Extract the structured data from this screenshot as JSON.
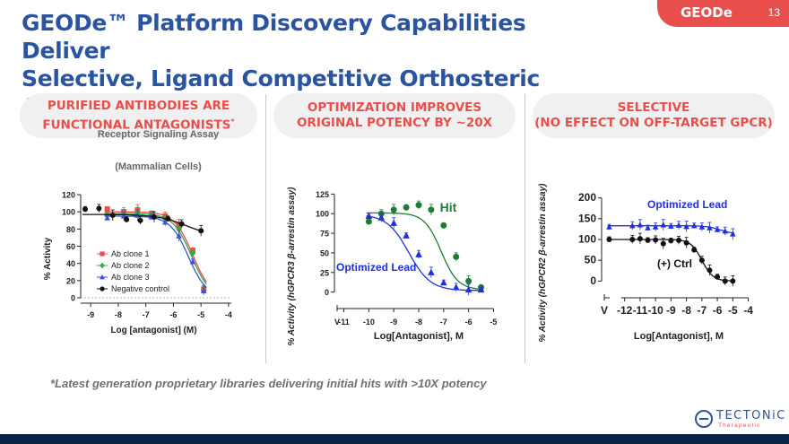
{
  "header": {
    "title_line1": "GEODe™ Platform Discovery Capabilities Deliver",
    "title_line2": "Selective, Ligand Competitive Orthosteric Antagonists",
    "badge_label": "GEODe",
    "slide_number": "13"
  },
  "panels": [
    {
      "heading_line1": "PURIFIED ANTIBODIES ARE",
      "heading_line2": "FUNCTIONAL ANTAGONISTS",
      "heading_mark": "*"
    },
    {
      "heading_line1": "OPTIMIZATION IMPROVES",
      "heading_line2": "ORIGINAL POTENCY BY ~20X"
    },
    {
      "heading_line1": "SELECTIVE",
      "heading_line2": "(NO EFFECT ON OFF-TARGET GPCR)"
    }
  ],
  "footnote": "*Latest generation proprietary libraries delivering initial hits with >10X potency",
  "logo": {
    "name": "TECTONiC",
    "sub": "Therapeutic"
  },
  "colors": {
    "accent": "#e84e4b",
    "title": "#2a54a0",
    "footer": "#0d2447"
  },
  "chart_data": [
    {
      "type": "scatter",
      "title": "Receptor Signaling Assay",
      "subtitle": "(Mammalian Cells)",
      "xlabel": "Log [antagonist] (M)",
      "ylabel": "% Activity",
      "xlim": [
        -9.2,
        -3.9
      ],
      "ylim": [
        0,
        120
      ],
      "xticks": [
        -9,
        -8,
        -7,
        -6,
        -5,
        -4
      ],
      "yticks": [
        0,
        20,
        40,
        60,
        80,
        100,
        120
      ],
      "legend_position": "left-center",
      "series": [
        {
          "name": "Ab clone 1",
          "color": "#e84e4b",
          "marker": "square",
          "x": [
            -8.4,
            -7.8,
            -7.3,
            -6.8,
            -6.3,
            -5.8,
            -5.3,
            -4.9
          ],
          "y": [
            103,
            100,
            102,
            98,
            95,
            85,
            55,
            10
          ],
          "fit_top": 100,
          "fit_bottom": 0,
          "logIC50": -5.3,
          "hill": 1.3
        },
        {
          "name": "Ab clone 2",
          "color": "#3aa844",
          "marker": "diamond",
          "x": [
            -8.4,
            -7.8,
            -7.3,
            -6.8,
            -6.3,
            -5.8,
            -5.3,
            -4.9
          ],
          "y": [
            96,
            98,
            99,
            97,
            92,
            80,
            52,
            9
          ],
          "fit_top": 98,
          "fit_bottom": 0,
          "logIC50": -5.35,
          "hill": 1.3
        },
        {
          "name": "Ab clone 3",
          "color": "#3f51d8",
          "marker": "triangle",
          "x": [
            -8.4,
            -7.8,
            -7.3,
            -6.8,
            -6.3,
            -5.8,
            -5.3,
            -4.9
          ],
          "y": [
            93,
            95,
            96,
            94,
            88,
            72,
            42,
            8
          ],
          "fit_top": 95,
          "fit_bottom": 0,
          "logIC50": -5.45,
          "hill": 1.3
        },
        {
          "name": "Negative control",
          "color": "#111111",
          "marker": "circle",
          "x": [
            -9.2,
            -8.7,
            -8.2,
            -7.7,
            -7.2,
            -6.7,
            -6.2,
            -5.7,
            -5.0
          ],
          "y": [
            103,
            104,
            96,
            91,
            90,
            94,
            92,
            86,
            78
          ],
          "fit_top": 97,
          "fit_bottom": 70,
          "logIC50": -5.5,
          "hill": 0.8
        }
      ]
    },
    {
      "type": "scatter",
      "xlabel": "Log[Antagonist], M",
      "ylabel": "% Activity (hGPCR3 β-arrestin assay)",
      "xlim": [
        -11.2,
        -4.8
      ],
      "ylim": [
        -5,
        130
      ],
      "xtick_labels": [
        "V",
        "-11",
        "-10",
        "-9",
        "-8",
        "-7",
        "-6",
        "-5"
      ],
      "xticks": [
        -11,
        -10,
        -9,
        -8,
        -7,
        -6,
        -5
      ],
      "yticks": [
        0,
        25,
        50,
        75,
        100,
        125
      ],
      "series": [
        {
          "name": "Hit",
          "color": "#1e7d32",
          "marker": "circle",
          "x": [
            -10,
            -9.5,
            -9,
            -8.5,
            -8,
            -7.5,
            -7,
            -6.5,
            -6,
            -5.5
          ],
          "y": [
            90,
            100,
            105,
            108,
            111,
            105,
            85,
            45,
            14,
            6
          ],
          "fit_top": 101,
          "fit_bottom": 3,
          "logIC50": -7.1,
          "hill": 1.3
        },
        {
          "name": "Optimized Lead",
          "color": "#2030e0",
          "marker": "triangle",
          "x": [
            -10,
            -9.5,
            -9,
            -8.5,
            -8,
            -7.5,
            -7,
            -6.5,
            -6,
            -5.5
          ],
          "y": [
            97,
            95,
            88,
            72,
            48,
            25,
            12,
            6,
            3,
            3
          ],
          "fit_top": 99,
          "fit_bottom": 2,
          "logIC50": -8.4,
          "hill": 1.0
        }
      ]
    },
    {
      "type": "scatter",
      "xlabel": "Log[Antagonist], M",
      "ylabel": "% Activity (hGPCR2 β-arrestin assay)",
      "xlim": [
        -13.2,
        -3.8
      ],
      "ylim": [
        -10,
        210
      ],
      "xtick_labels": [
        "V",
        "-12",
        "-11",
        "-10",
        "-9",
        "-8",
        "-7",
        "-6",
        "-5",
        "-4"
      ],
      "xticks": [
        -12,
        -11,
        -10,
        -9,
        -8,
        -7,
        -6,
        -5,
        -4
      ],
      "yticks": [
        0,
        50,
        100,
        150,
        200
      ],
      "series": [
        {
          "name": "Optimized Lead",
          "color": "#2030e0",
          "marker": "triangle",
          "x": [
            -13.0,
            -11.5,
            -11.0,
            -10.5,
            -10.0,
            -9.5,
            -9.0,
            -8.5,
            -8.0,
            -7.5,
            -7.0,
            -6.5,
            -6.0,
            -5.5,
            -5.0
          ],
          "y": [
            130,
            133,
            135,
            128,
            130,
            135,
            132,
            134,
            131,
            133,
            130,
            128,
            124,
            120,
            113
          ],
          "fit_top": 133,
          "fit_bottom": 113,
          "logIC50": -5.8,
          "hill": 1.0
        },
        {
          "name": "(+) Ctrl",
          "color": "#111111",
          "marker": "circle",
          "x": [
            -13.0,
            -11.5,
            -11.0,
            -10.5,
            -10.0,
            -9.5,
            -9.0,
            -8.5,
            -8.0,
            -7.5,
            -7.0,
            -6.5,
            -6.0,
            -5.5,
            -5.0
          ],
          "y": [
            100,
            100,
            102,
            98,
            99,
            90,
            97,
            98,
            92,
            75,
            50,
            26,
            10,
            0,
            0
          ],
          "fit_top": 100,
          "fit_bottom": 0,
          "logIC50": -7.0,
          "hill": 1.2
        }
      ]
    }
  ]
}
